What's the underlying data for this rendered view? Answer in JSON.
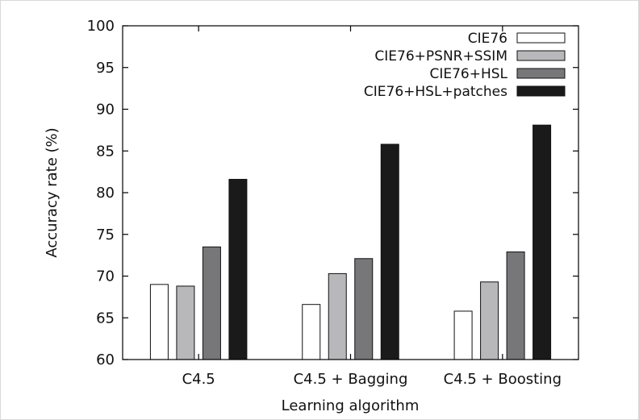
{
  "chart_data": {
    "type": "bar",
    "categories": [
      "C4.5",
      "C4.5 + Bagging",
      "C4.5 + Boosting"
    ],
    "series": [
      {
        "name": "CIE76",
        "color": "#ffffff",
        "values": [
          69.0,
          66.6,
          65.8
        ]
      },
      {
        "name": "CIE76+PSNR+SSIM",
        "color": "#b8b8ba",
        "values": [
          68.8,
          70.3,
          69.3
        ]
      },
      {
        "name": "CIE76+HSL",
        "color": "#77777a",
        "values": [
          73.5,
          72.1,
          72.9
        ]
      },
      {
        "name": "CIE76+HSL+patches",
        "color": "#1a1a1a",
        "values": [
          81.6,
          85.8,
          88.1
        ]
      }
    ],
    "xlabel": "Learning algorithm",
    "ylabel": "Accuracy rate (%)",
    "ylim": [
      60,
      100
    ],
    "yticks": [
      60,
      65,
      70,
      75,
      80,
      85,
      90,
      95,
      100
    ],
    "legend_position": "top-right",
    "grid": false
  }
}
